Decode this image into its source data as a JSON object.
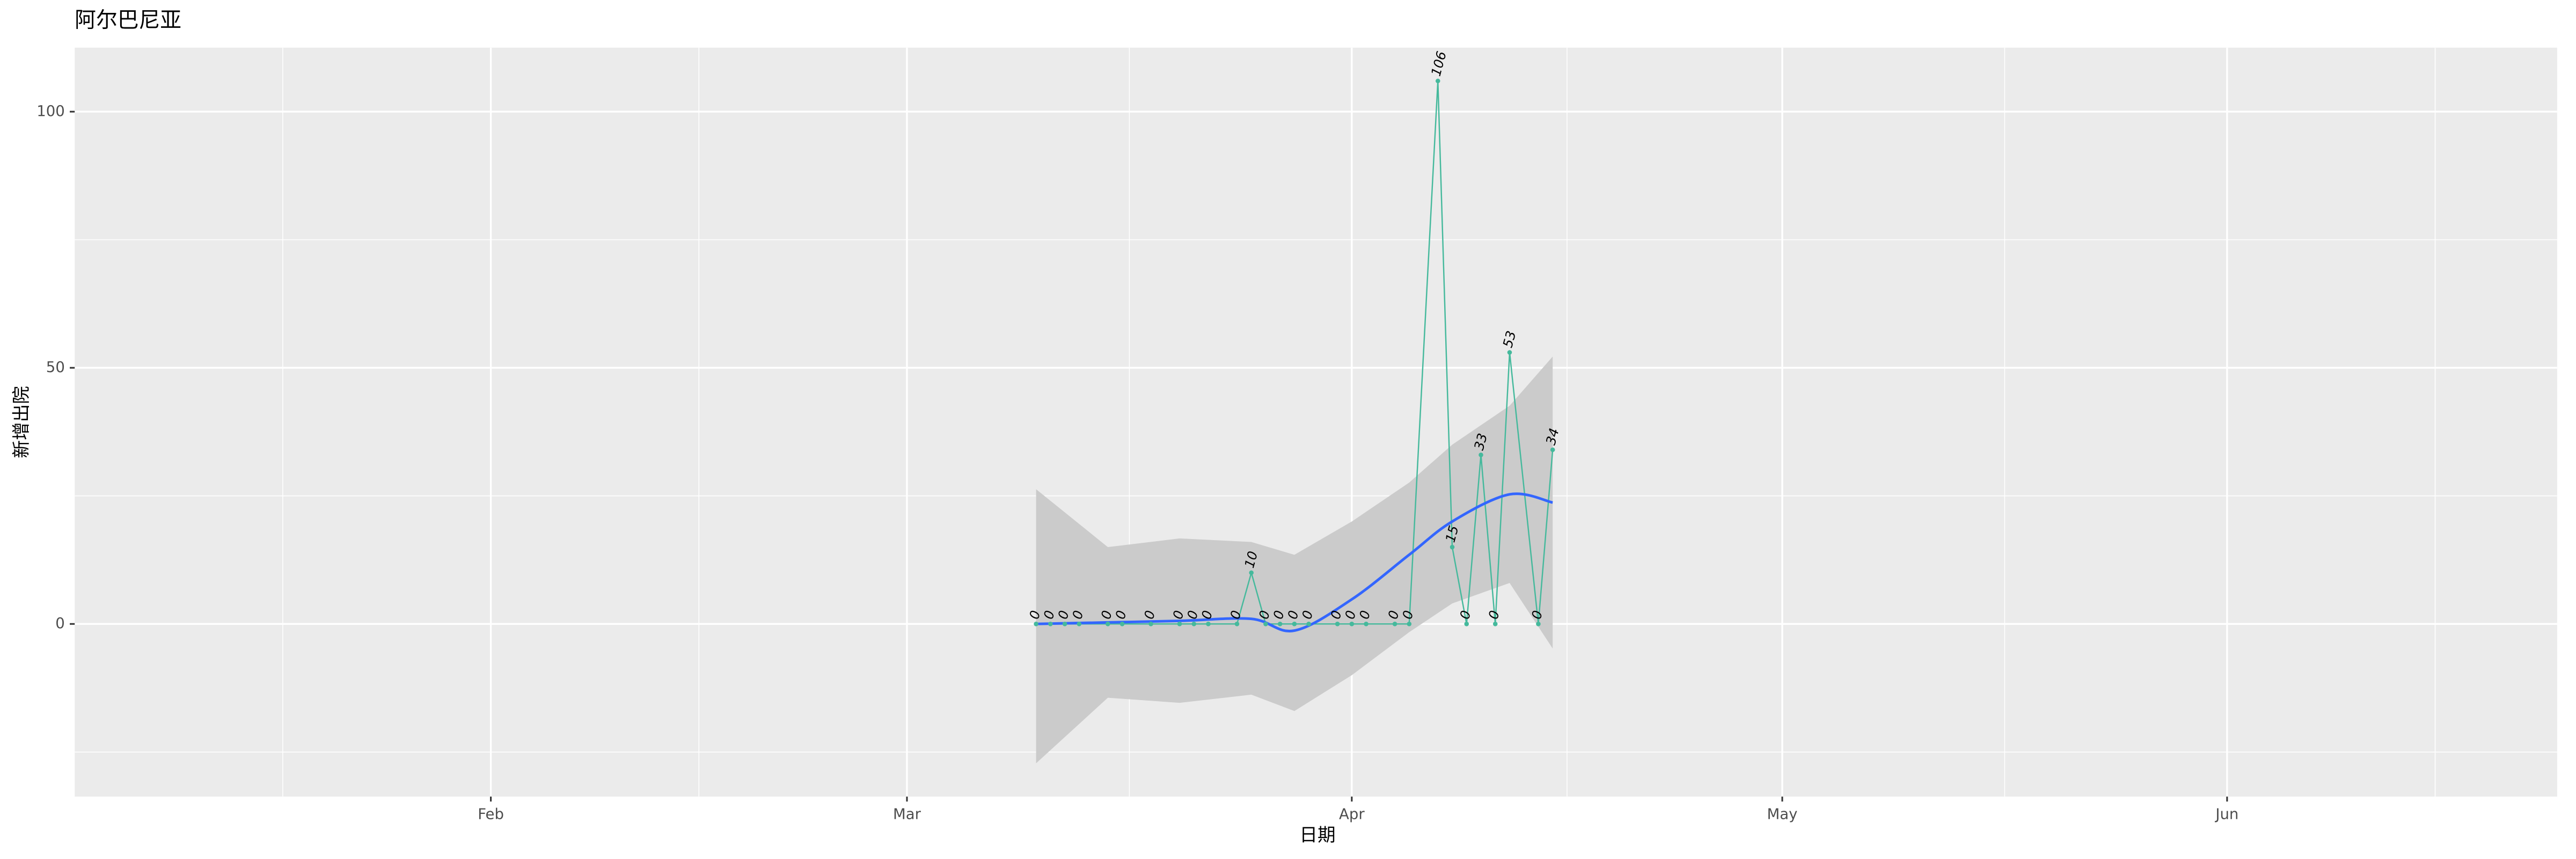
{
  "chart_data": {
    "type": "line",
    "title": "阿尔巴尼亚",
    "x_label": "日期",
    "y_label": "新增出院",
    "x": [
      "03-10",
      "03-11",
      "03-12",
      "03-13",
      "03-15",
      "03-16",
      "03-18",
      "03-20",
      "03-21",
      "03-22",
      "03-24",
      "03-25",
      "03-26",
      "03-27",
      "03-28",
      "03-29",
      "03-31",
      "04-01",
      "04-02",
      "04-04",
      "04-05",
      "04-07",
      "04-08",
      "04-09",
      "04-10",
      "04-11",
      "04-12",
      "04-14",
      "04-15"
    ],
    "values": [
      0,
      0,
      0,
      0,
      0,
      0,
      0,
      0,
      0,
      0,
      0,
      10,
      0,
      0,
      0,
      0,
      0,
      0,
      0,
      0,
      0,
      106,
      15,
      0,
      33,
      0,
      53,
      0,
      34
    ],
    "color": "#45b99c",
    "smooth": {
      "color": "#3366ff",
      "band_color": "#cbcbcb",
      "x": [
        "03-10",
        "03-15",
        "03-20",
        "03-25",
        "03-28",
        "04-01",
        "04-05",
        "04-08",
        "04-12",
        "04-15"
      ],
      "values": [
        0,
        0.3,
        0.6,
        1,
        -1.3,
        4.8,
        13.5,
        20,
        25.3,
        23.7
      ],
      "upper": [
        26.3,
        15,
        16.7,
        16,
        13.5,
        20,
        27.6,
        35,
        42.6,
        52.2
      ],
      "lower": [
        -27.2,
        -14.4,
        -15.4,
        -13.8,
        -17,
        -10,
        -1.6,
        4,
        8,
        -4.8
      ]
    },
    "xlim": [
      "01-03",
      "06-24"
    ],
    "xticks": [
      {
        "value": "02-01",
        "label": "Feb"
      },
      {
        "value": "03-01",
        "label": "Mar"
      },
      {
        "value": "04-01",
        "label": "Apr"
      },
      {
        "value": "05-01",
        "label": "May"
      },
      {
        "value": "06-01",
        "label": "Jun"
      }
    ],
    "ylim": [
      -33.7,
      112.5
    ],
    "yticks": [
      0,
      50,
      100
    ],
    "grid": true
  }
}
